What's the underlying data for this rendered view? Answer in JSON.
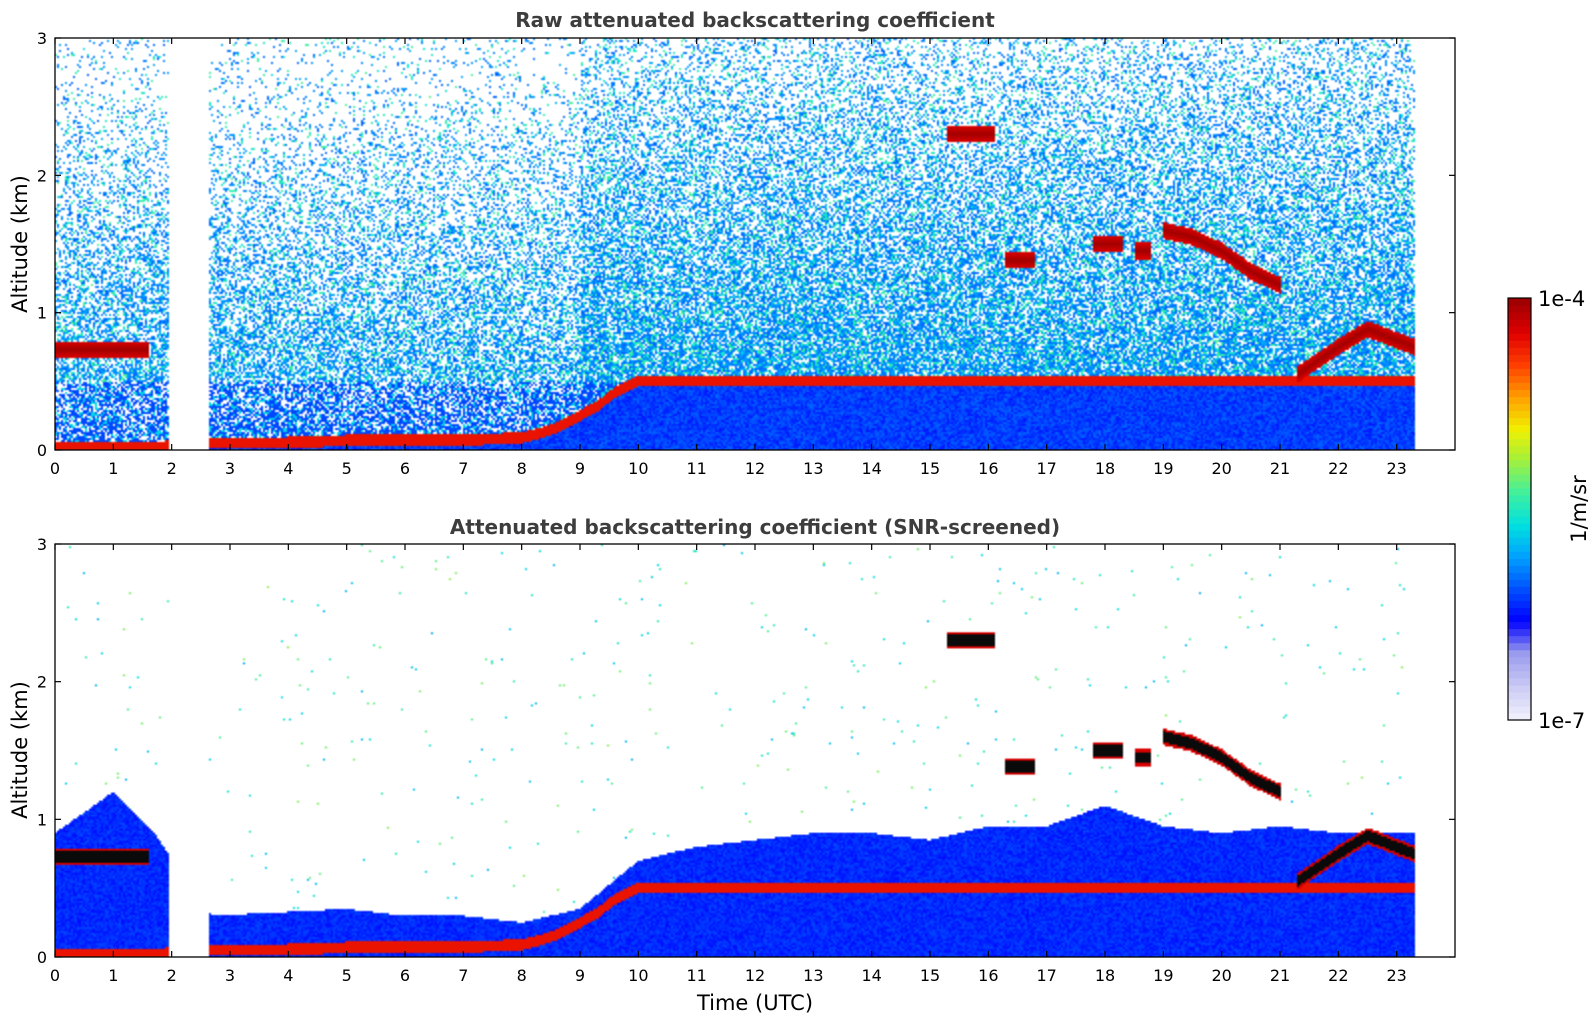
{
  "chart_data": [
    {
      "type": "heatmap",
      "title": "Raw attenuated backscattering coefficient",
      "xlabel": "",
      "ylabel": "Altitude (km)",
      "xlim": [
        0,
        24
      ],
      "ylim": [
        0,
        3
      ],
      "x_ticks": [
        "0",
        "1",
        "2",
        "3",
        "4",
        "5",
        "6",
        "7",
        "8",
        "9",
        "10",
        "11",
        "12",
        "13",
        "14",
        "15",
        "16",
        "17",
        "18",
        "19",
        "20",
        "21",
        "22",
        "23"
      ],
      "y_ticks": [
        "0",
        "1",
        "2",
        "3"
      ],
      "data_coverage": {
        "x": [
          0,
          23.3
        ],
        "y": [
          0,
          3
        ]
      },
      "no_data_gaps_utc": [
        [
          1.95,
          2.65
        ]
      ],
      "features": [
        {
          "name": "boundary-layer aerosol top",
          "x": [
            0,
            1,
            1.7,
            2.7,
            3.5,
            4.5,
            5,
            6,
            7,
            8,
            8.3,
            8.6,
            9,
            9.3,
            9.6,
            10
          ],
          "y": [
            0.02,
            0.02,
            0.02,
            0.05,
            0.05,
            0.06,
            0.07,
            0.07,
            0.07,
            0.09,
            0.12,
            0.16,
            0.25,
            0.32,
            0.42,
            0.5
          ]
        },
        {
          "name": "low cloud 0-1.6 UTC",
          "x": [
            0,
            1.6
          ],
          "y": 0.73
        },
        {
          "name": "cloud 15.3-16.1 UTC",
          "x": [
            15.3,
            16.1
          ],
          "y": 2.3
        },
        {
          "name": "cloud 16.3-16.8 UTC",
          "x": [
            16.3,
            16.8
          ],
          "y": 1.38
        },
        {
          "name": "cloud 17.8-18.3 UTC",
          "x": [
            17.8,
            18.3
          ],
          "y": 1.5
        },
        {
          "name": "cloud 18.5-18.8 UTC",
          "x": [
            18.5,
            18.8
          ],
          "y": 1.45
        },
        {
          "name": "descending cloud 19-21 UTC",
          "x": [
            19,
            19.5,
            20,
            20.5,
            21
          ],
          "y": [
            1.6,
            1.55,
            1.45,
            1.3,
            1.2
          ]
        },
        {
          "name": "cloud 21.3-23.3 UTC",
          "x": [
            21.3,
            22,
            22.5,
            23.3
          ],
          "y": [
            0.55,
            0.75,
            0.88,
            0.75
          ]
        }
      ]
    },
    {
      "type": "heatmap",
      "title": "Attenuated backscattering coefficient (SNR-screened)",
      "xlabel": "Time (UTC)",
      "ylabel": "Altitude (km)",
      "xlim": [
        0,
        24
      ],
      "ylim": [
        0,
        3
      ],
      "x_ticks": [
        "0",
        "1",
        "2",
        "3",
        "4",
        "5",
        "6",
        "7",
        "8",
        "9",
        "10",
        "11",
        "12",
        "13",
        "14",
        "15",
        "16",
        "17",
        "18",
        "19",
        "20",
        "21",
        "22",
        "23"
      ],
      "y_ticks": [
        "0",
        "1",
        "2",
        "3"
      ],
      "data_coverage": {
        "x": [
          0,
          23.3
        ],
        "y": [
          0,
          3
        ]
      },
      "screened_boundary_layer_top": {
        "x": [
          0,
          1,
          1.7,
          2.7,
          5,
          6,
          7,
          8,
          9,
          10,
          11,
          12,
          13,
          14,
          15,
          16,
          17,
          18,
          19,
          20,
          21,
          22,
          23.3
        ],
        "y": [
          0.9,
          1.2,
          0.9,
          0.3,
          0.35,
          0.3,
          0.3,
          0.25,
          0.35,
          0.7,
          0.8,
          0.85,
          0.9,
          0.9,
          0.85,
          0.95,
          0.95,
          1.1,
          0.95,
          0.9,
          0.95,
          0.9,
          0.9
        ]
      }
    }
  ],
  "colorbar": {
    "min_label": "1e-7",
    "max_label": "1e-4",
    "label": "1/m/sr",
    "scale": "log",
    "colors": [
      "#eeeefc",
      "#c8c8f4",
      "#9999ee",
      "#0000ff",
      "#0050ff",
      "#00a0ff",
      "#00e0e0",
      "#40f0a0",
      "#a0f040",
      "#f0f000",
      "#ffa000",
      "#ff4000",
      "#e00000",
      "#a00000"
    ]
  }
}
